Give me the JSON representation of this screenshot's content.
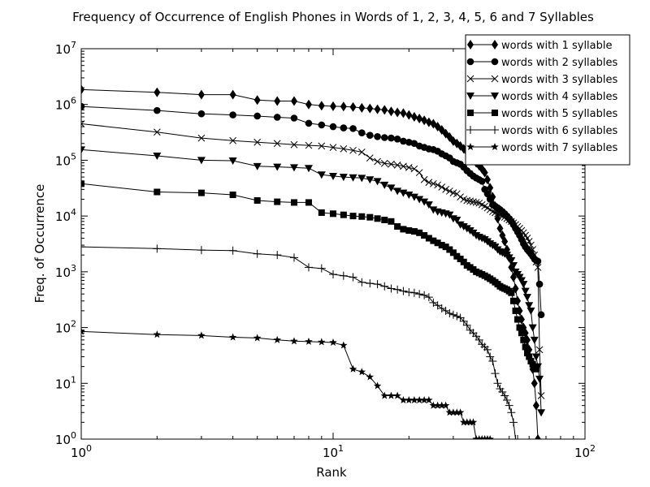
{
  "chart_data": {
    "type": "line",
    "title": "Frequency of Occurrence of English Phones in Words of 1, 2, 3, 4, 5, 6 and 7 Syllables",
    "xlabel": "Rank",
    "ylabel": "Freq. of Occurrence",
    "x_scale": "log",
    "y_scale": "log",
    "xlim": [
      1,
      100
    ],
    "ylim": [
      1,
      10000000
    ],
    "x_ticks": [
      {
        "value": 1,
        "base": "10",
        "exp": "0"
      },
      {
        "value": 10,
        "base": "10",
        "exp": "1"
      },
      {
        "value": 100,
        "base": "10",
        "exp": "2"
      }
    ],
    "y_ticks": [
      {
        "value": 1,
        "base": "10",
        "exp": "0"
      },
      {
        "value": 10,
        "base": "10",
        "exp": "1"
      },
      {
        "value": 100,
        "base": "10",
        "exp": "2"
      },
      {
        "value": 1000,
        "base": "10",
        "exp": "3"
      },
      {
        "value": 10000,
        "base": "10",
        "exp": "4"
      },
      {
        "value": 100000,
        "base": "10",
        "exp": "5"
      },
      {
        "value": 1000000,
        "base": "10",
        "exp": "6"
      },
      {
        "value": 10000000,
        "base": "10",
        "exp": "7"
      }
    ],
    "grid": false,
    "legend_position": "top-right",
    "line_color": "#000000",
    "series": [
      {
        "name": "words with 1 syllable",
        "marker": "diamond",
        "x": [
          1,
          2,
          3,
          4,
          5,
          6,
          7,
          8,
          9,
          10,
          11,
          12,
          13,
          14,
          15,
          16,
          17,
          18,
          19,
          20,
          21,
          22,
          23,
          24,
          25,
          26,
          27,
          28,
          29,
          30,
          31,
          32,
          33,
          34,
          35,
          36,
          37,
          38,
          39,
          40,
          41,
          42,
          43,
          44,
          45,
          46,
          47,
          48,
          49,
          50,
          51,
          52,
          53,
          54,
          55,
          56,
          57,
          58,
          59,
          60,
          61,
          62,
          63,
          64,
          65
        ],
        "y": [
          1850000,
          1650000,
          1500000,
          1500000,
          1200000,
          1150000,
          1150000,
          1000000,
          950000,
          930000,
          920000,
          900000,
          870000,
          850000,
          820000,
          800000,
          750000,
          720000,
          700000,
          650000,
          600000,
          560000,
          520000,
          480000,
          450000,
          400000,
          350000,
          300000,
          260000,
          220000,
          200000,
          180000,
          160000,
          140000,
          120000,
          100000,
          90000,
          80000,
          70000,
          60000,
          45000,
          32000,
          22000,
          15000,
          9000,
          6000,
          4500,
          3500,
          2500,
          1800,
          1200,
          800,
          500,
          300,
          200,
          140,
          100,
          80,
          60,
          40,
          25,
          18,
          10,
          4,
          1
        ]
      },
      {
        "name": "words with 2 syllables",
        "marker": "circle",
        "x": [
          1,
          2,
          3,
          4,
          5,
          6,
          7,
          8,
          9,
          10,
          11,
          12,
          13,
          14,
          15,
          16,
          17,
          18,
          19,
          20,
          21,
          22,
          23,
          24,
          25,
          26,
          27,
          28,
          29,
          30,
          31,
          32,
          33,
          34,
          35,
          36,
          37,
          38,
          39,
          40,
          41,
          42,
          43,
          44,
          45,
          46,
          47,
          48,
          49,
          50,
          51,
          52,
          53,
          54,
          55,
          56,
          57,
          58,
          59,
          60,
          61,
          62,
          63,
          64,
          65,
          66,
          67
        ],
        "y": [
          920000,
          780000,
          680000,
          650000,
          620000,
          590000,
          570000,
          460000,
          430000,
          400000,
          380000,
          370000,
          310000,
          280000,
          265000,
          255000,
          250000,
          240000,
          220000,
          210000,
          200000,
          180000,
          170000,
          160000,
          155000,
          145000,
          130000,
          120000,
          110000,
          95000,
          90000,
          85000,
          75000,
          65000,
          58000,
          52000,
          48000,
          45000,
          42000,
          30000,
          25000,
          20000,
          16000,
          15000,
          14000,
          13000,
          12000,
          11000,
          10000,
          9000,
          8000,
          7000,
          6000,
          5200,
          4500,
          3800,
          3200,
          2800,
          2500,
          2300,
          2100,
          1900,
          1700,
          1600,
          1550,
          600,
          170
        ]
      },
      {
        "name": "words with 3 syllables",
        "marker": "x",
        "x": [
          1,
          2,
          3,
          4,
          5,
          6,
          7,
          8,
          9,
          10,
          11,
          12,
          13,
          14,
          15,
          16,
          17,
          18,
          19,
          20,
          21,
          22,
          23,
          24,
          25,
          26,
          27,
          28,
          29,
          30,
          31,
          32,
          33,
          34,
          35,
          36,
          37,
          38,
          39,
          40,
          41,
          42,
          43,
          44,
          45,
          46,
          47,
          48,
          49,
          50,
          51,
          52,
          53,
          54,
          55,
          56,
          57,
          58,
          59,
          60,
          61,
          62,
          63,
          64,
          65,
          66,
          67
        ],
        "y": [
          450000,
          320000,
          250000,
          225000,
          210000,
          200000,
          190000,
          185000,
          180000,
          170000,
          160000,
          150000,
          140000,
          110000,
          95000,
          88000,
          85000,
          82000,
          78000,
          74000,
          70000,
          60000,
          45000,
          40000,
          38000,
          36000,
          33000,
          30000,
          28000,
          26000,
          25000,
          22000,
          20000,
          19000,
          18500,
          18000,
          17500,
          17000,
          16000,
          15000,
          14000,
          13000,
          12000,
          11500,
          11000,
          10500,
          10000,
          9500,
          9000,
          8500,
          8000,
          7500,
          7000,
          6500,
          6000,
          5500,
          5000,
          4500,
          4000,
          3500,
          3000,
          2500,
          2000,
          1500,
          1200,
          40,
          6
        ]
      },
      {
        "name": "words with 4 syllables",
        "marker": "triangle-down",
        "x": [
          1,
          2,
          3,
          4,
          5,
          6,
          7,
          8,
          9,
          10,
          11,
          12,
          13,
          14,
          15,
          16,
          17,
          18,
          19,
          20,
          21,
          22,
          23,
          24,
          25,
          26,
          27,
          28,
          29,
          30,
          31,
          32,
          33,
          34,
          35,
          36,
          37,
          38,
          39,
          40,
          41,
          42,
          43,
          44,
          45,
          46,
          47,
          48,
          49,
          50,
          51,
          52,
          53,
          54,
          55,
          56,
          57,
          58,
          59,
          60,
          61,
          62,
          63,
          64,
          65,
          66,
          67
        ],
        "y": [
          155000,
          120000,
          100000,
          98000,
          78000,
          76000,
          74000,
          72000,
          55000,
          52000,
          50000,
          49000,
          48000,
          45000,
          42000,
          36000,
          32000,
          28000,
          26000,
          24000,
          22000,
          20000,
          18000,
          16000,
          13000,
          12000,
          11500,
          11000,
          10500,
          9000,
          8500,
          7000,
          6500,
          6000,
          5500,
          5000,
          4500,
          4200,
          4000,
          3800,
          3500,
          3200,
          3000,
          2800,
          2500,
          2300,
          2200,
          2100,
          2000,
          1800,
          1600,
          1300,
          1000,
          900,
          800,
          700,
          600,
          450,
          350,
          250,
          200,
          100,
          60,
          30,
          20,
          12,
          3
        ]
      },
      {
        "name": "words with 5 syllables",
        "marker": "square",
        "x": [
          1,
          2,
          3,
          4,
          5,
          6,
          7,
          8,
          9,
          10,
          11,
          12,
          13,
          14,
          15,
          16,
          17,
          18,
          19,
          20,
          21,
          22,
          23,
          24,
          25,
          26,
          27,
          28,
          29,
          30,
          31,
          32,
          33,
          34,
          35,
          36,
          37,
          38,
          39,
          40,
          41,
          42,
          43,
          44,
          45,
          46,
          47,
          48,
          49,
          50,
          51,
          52,
          53,
          54,
          55,
          56,
          57,
          58,
          59,
          60,
          61,
          62,
          63,
          64
        ],
        "y": [
          38000,
          27000,
          26000,
          24000,
          19000,
          18000,
          17500,
          17500,
          11500,
          11000,
          10500,
          10000,
          9800,
          9500,
          9000,
          8500,
          8000,
          6500,
          5800,
          5500,
          5300,
          5000,
          4500,
          4000,
          3600,
          3300,
          3000,
          2800,
          2500,
          2200,
          1900,
          1700,
          1500,
          1300,
          1200,
          1100,
          1000,
          950,
          900,
          850,
          800,
          750,
          700,
          650,
          600,
          550,
          520,
          500,
          480,
          450,
          420,
          300,
          200,
          140,
          100,
          80,
          60,
          45,
          35,
          30,
          25,
          22,
          20,
          18
        ]
      },
      {
        "name": "words with 6 syllables",
        "marker": "plus",
        "x": [
          1,
          2,
          3,
          4,
          5,
          6,
          7,
          8,
          9,
          10,
          11,
          12,
          13,
          14,
          15,
          16,
          17,
          18,
          19,
          20,
          21,
          22,
          23,
          24,
          25,
          26,
          27,
          28,
          29,
          30,
          31,
          32,
          33,
          34,
          35,
          36,
          37,
          38,
          39,
          40,
          41,
          42,
          43,
          44,
          45,
          46,
          47,
          48,
          49,
          50,
          51,
          52,
          53,
          54
        ],
        "y": [
          2800,
          2600,
          2450,
          2400,
          2100,
          2000,
          1800,
          1200,
          1150,
          900,
          850,
          800,
          650,
          620,
          600,
          550,
          500,
          480,
          450,
          430,
          420,
          400,
          380,
          350,
          280,
          250,
          220,
          200,
          180,
          170,
          160,
          150,
          130,
          110,
          90,
          80,
          70,
          60,
          50,
          45,
          40,
          30,
          25,
          15,
          10,
          8,
          7,
          6,
          5,
          4,
          3,
          2,
          1,
          1
        ]
      },
      {
        "name": "words with 7 syllables",
        "marker": "star",
        "x": [
          1,
          2,
          3,
          4,
          5,
          6,
          7,
          8,
          9,
          10,
          11,
          12,
          13,
          14,
          15,
          16,
          17,
          18,
          19,
          20,
          21,
          22,
          23,
          24,
          25,
          26,
          27,
          28,
          29,
          30,
          31,
          32,
          33,
          34,
          35,
          36,
          37,
          38,
          39,
          40,
          41,
          42
        ],
        "y": [
          85,
          75,
          72,
          67,
          65,
          60,
          57,
          56,
          55,
          54,
          48,
          18,
          16,
          13,
          9,
          6,
          6,
          6,
          5,
          5,
          5,
          5,
          5,
          5,
          4,
          4,
          4,
          4,
          3,
          3,
          3,
          3,
          2,
          2,
          2,
          2,
          1,
          1,
          1,
          1,
          1,
          1
        ]
      }
    ]
  }
}
